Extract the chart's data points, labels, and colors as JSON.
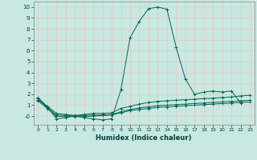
{
  "xlabel": "Humidex (Indice chaleur)",
  "xlim": [
    -0.5,
    23.5
  ],
  "ylim": [
    -0.8,
    10.5
  ],
  "xticks": [
    0,
    1,
    2,
    3,
    4,
    5,
    6,
    7,
    8,
    9,
    10,
    11,
    12,
    13,
    14,
    15,
    16,
    17,
    18,
    19,
    20,
    21,
    22,
    23
  ],
  "yticks": [
    0,
    1,
    2,
    3,
    4,
    5,
    6,
    7,
    8,
    9,
    10
  ],
  "yticklabels": [
    "-0",
    "1",
    "2",
    "3",
    "4",
    "5",
    "6",
    "7",
    "8",
    "9",
    "10"
  ],
  "bg_color": "#c8e8e0",
  "grid_color": "#e8c8c8",
  "line_color": "#006858",
  "line1_x": [
    0,
    1,
    2,
    3,
    4,
    5,
    6,
    7,
    8,
    9,
    10,
    11,
    12,
    13,
    14,
    15,
    16,
    17,
    18,
    19,
    20,
    21,
    22
  ],
  "line1_y": [
    1.7,
    0.85,
    -0.25,
    -0.15,
    0.05,
    -0.15,
    -0.25,
    -0.35,
    -0.25,
    2.4,
    7.2,
    8.7,
    9.85,
    10.0,
    9.8,
    6.3,
    3.4,
    2.0,
    2.2,
    2.3,
    2.2,
    2.3,
    1.2
  ],
  "line2_x": [
    0,
    1,
    2,
    3,
    4,
    5,
    6,
    7,
    8,
    9,
    10,
    11,
    12,
    13,
    14,
    15,
    16,
    17,
    18,
    19,
    20,
    21,
    22,
    23
  ],
  "line2_y": [
    1.6,
    0.9,
    0.25,
    0.15,
    0.05,
    0.15,
    0.25,
    0.25,
    0.3,
    0.7,
    0.9,
    1.1,
    1.25,
    1.35,
    1.4,
    1.45,
    1.5,
    1.55,
    1.6,
    1.65,
    1.7,
    1.75,
    1.85,
    1.9
  ],
  "line3_x": [
    0,
    1,
    2,
    3,
    4,
    5,
    6,
    7,
    8,
    9,
    10,
    11,
    12,
    13,
    14,
    15,
    16,
    17,
    18,
    19,
    20,
    21,
    22,
    23
  ],
  "line3_y": [
    1.5,
    0.8,
    0.1,
    0.05,
    0.0,
    0.05,
    0.1,
    0.1,
    0.15,
    0.4,
    0.6,
    0.75,
    0.85,
    0.95,
    1.0,
    1.05,
    1.1,
    1.15,
    1.2,
    1.25,
    1.3,
    1.35,
    1.4,
    1.45
  ],
  "line4_x": [
    0,
    1,
    2,
    3,
    4,
    5,
    6,
    7,
    8,
    9,
    10,
    11,
    12,
    13,
    14,
    15,
    16,
    17,
    18,
    19,
    20,
    21,
    22,
    23
  ],
  "line4_y": [
    1.4,
    0.7,
    0.0,
    -0.05,
    -0.05,
    -0.05,
    0.0,
    0.05,
    0.1,
    0.3,
    0.5,
    0.6,
    0.7,
    0.8,
    0.85,
    0.9,
    0.95,
    1.0,
    1.05,
    1.1,
    1.15,
    1.2,
    1.25,
    1.3
  ]
}
